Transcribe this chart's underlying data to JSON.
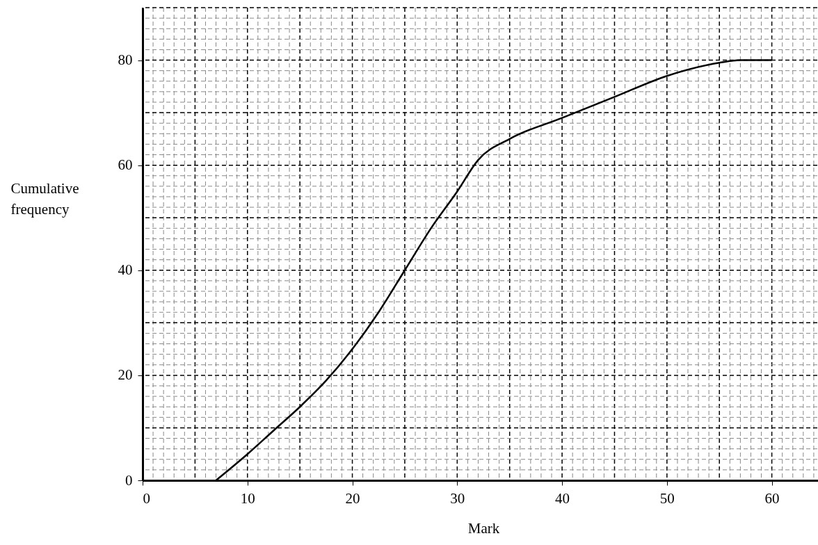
{
  "chart_data": {
    "type": "line",
    "xlabel": "Mark",
    "ylabel": "Cumulative frequency",
    "x": [
      7,
      10,
      12.5,
      15,
      17.5,
      20,
      22.5,
      25,
      27.5,
      30,
      32,
      35,
      40,
      45,
      50,
      55,
      57,
      60
    ],
    "series": [
      {
        "color": "#000000",
        "values": [
          0,
          5,
          9.5,
          14,
          19,
          25,
          32,
          40,
          48,
          55,
          61,
          65,
          69,
          73,
          77,
          79.5,
          80,
          80
        ]
      }
    ],
    "xlim": [
      0,
      65
    ],
    "ylim": [
      0,
      90
    ],
    "xticks": [
      0,
      10,
      20,
      30,
      40,
      50,
      60
    ],
    "yticks": [
      0,
      20,
      40,
      60,
      80
    ],
    "grid": true,
    "marker": "none",
    "line_style": "solid"
  }
}
